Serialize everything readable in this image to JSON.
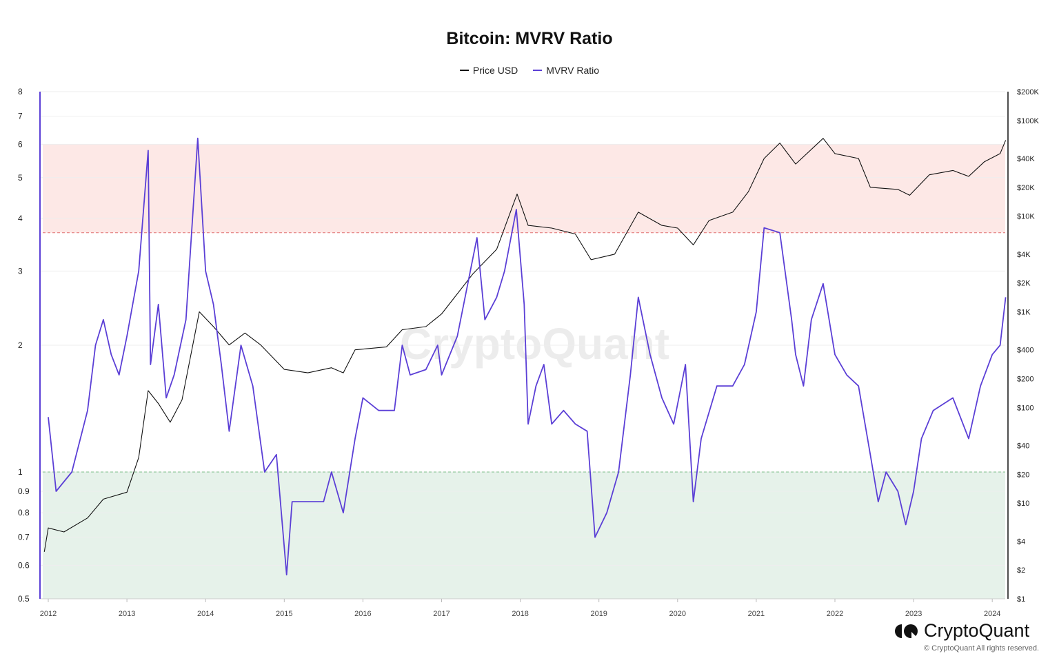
{
  "chart_data": {
    "type": "line",
    "title": "Bitcoin: MVRV Ratio",
    "legend_placement": "top-center",
    "grid": true,
    "x_ticks": [
      "2012",
      "2013",
      "2014",
      "2015",
      "2016",
      "2017",
      "2018",
      "2019",
      "2020",
      "2021",
      "2022",
      "2023",
      "2024"
    ],
    "xlim": [
      2011.9,
      2024.17
    ],
    "y_left": {
      "scale": "log",
      "range": [
        0.5,
        8
      ],
      "ticks": [
        "8",
        "7",
        "6",
        "5",
        "4",
        "3",
        "2",
        "1",
        "0.9",
        "0.8",
        "0.7",
        "0.6",
        "0.5"
      ],
      "tick_values": [
        8,
        7,
        6,
        5,
        4,
        3,
        2,
        1,
        0.9,
        0.8,
        0.7,
        0.6,
        0.5
      ]
    },
    "y_right": {
      "scale": "log",
      "range": [
        1,
        200000
      ],
      "ticks": [
        "$200K",
        "$100K",
        "$40K",
        "$20K",
        "$10K",
        "$4K",
        "$2K",
        "$1K",
        "$400",
        "$200",
        "$100",
        "$40",
        "$20",
        "$10",
        "$4",
        "$2",
        "$1"
      ],
      "tick_values": [
        200000,
        100000,
        40000,
        20000,
        10000,
        4000,
        2000,
        1000,
        400,
        200,
        100,
        40,
        20,
        10,
        4,
        2,
        1
      ]
    },
    "bands": [
      {
        "from": 3.7,
        "to": 6,
        "color": "#fde8e6",
        "line_color": "#e07070"
      },
      {
        "from": 0.5,
        "to": 1,
        "color": "#e6f2ea",
        "line_color": "#7fbf8a"
      }
    ],
    "series": [
      {
        "name": "Price USD",
        "axis": "right",
        "color": "#111111",
        "x": [
          2011.95,
          2012.0,
          2012.2,
          2012.5,
          2012.7,
          2013.0,
          2013.15,
          2013.27,
          2013.4,
          2013.55,
          2013.7,
          2013.92,
          2014.1,
          2014.3,
          2014.5,
          2014.7,
          2015.0,
          2015.3,
          2015.6,
          2015.75,
          2015.9,
          2016.3,
          2016.5,
          2016.8,
          2017.0,
          2017.4,
          2017.7,
          2017.96,
          2018.1,
          2018.4,
          2018.7,
          2018.9,
          2019.2,
          2019.5,
          2019.8,
          2020.0,
          2020.2,
          2020.4,
          2020.7,
          2020.9,
          2021.1,
          2021.3,
          2021.5,
          2021.85,
          2022.0,
          2022.3,
          2022.45,
          2022.8,
          2022.95,
          2023.2,
          2023.5,
          2023.7,
          2023.9,
          2024.1,
          2024.17
        ],
        "values": [
          3.1,
          5.5,
          5,
          7,
          11,
          13,
          30,
          150,
          110,
          70,
          120,
          1000,
          700,
          450,
          600,
          450,
          250,
          230,
          260,
          230,
          400,
          430,
          650,
          700,
          950,
          2500,
          4500,
          17000,
          8000,
          7500,
          6500,
          3500,
          4000,
          11000,
          8000,
          7500,
          5000,
          9000,
          11000,
          18000,
          40000,
          58000,
          35000,
          65000,
          45000,
          40000,
          20000,
          19000,
          16500,
          27000,
          30000,
          26000,
          37000,
          45000,
          62000
        ]
      },
      {
        "name": "MVRV Ratio",
        "axis": "left",
        "color": "#5b3fd6",
        "x": [
          2012.0,
          2012.1,
          2012.3,
          2012.5,
          2012.6,
          2012.7,
          2012.8,
          2012.9,
          2013.0,
          2013.15,
          2013.27,
          2013.3,
          2013.4,
          2013.5,
          2013.6,
          2013.75,
          2013.9,
          2014.0,
          2014.1,
          2014.2,
          2014.3,
          2014.45,
          2014.6,
          2014.75,
          2014.9,
          2015.03,
          2015.1,
          2015.3,
          2015.5,
          2015.6,
          2015.75,
          2015.9,
          2016.0,
          2016.2,
          2016.4,
          2016.5,
          2016.6,
          2016.8,
          2016.95,
          2017.0,
          2017.2,
          2017.45,
          2017.55,
          2017.7,
          2017.8,
          2017.95,
          2018.05,
          2018.1,
          2018.2,
          2018.3,
          2018.4,
          2018.55,
          2018.7,
          2018.85,
          2018.95,
          2019.1,
          2019.25,
          2019.4,
          2019.5,
          2019.65,
          2019.8,
          2019.95,
          2020.1,
          2020.2,
          2020.3,
          2020.5,
          2020.7,
          2020.85,
          2021.0,
          2021.1,
          2021.3,
          2021.45,
          2021.5,
          2021.6,
          2021.7,
          2021.85,
          2022.0,
          2022.15,
          2022.3,
          2022.45,
          2022.55,
          2022.65,
          2022.8,
          2022.9,
          2023.0,
          2023.1,
          2023.25,
          2023.5,
          2023.7,
          2023.85,
          2024.0,
          2024.1,
          2024.17
        ],
        "values": [
          1.35,
          0.9,
          1.0,
          1.4,
          2.0,
          2.3,
          1.9,
          1.7,
          2.1,
          3.0,
          5.8,
          1.8,
          2.5,
          1.5,
          1.7,
          2.3,
          6.2,
          3.0,
          2.5,
          1.8,
          1.25,
          2.0,
          1.6,
          1.0,
          1.1,
          0.57,
          0.85,
          0.85,
          0.85,
          1.0,
          0.8,
          1.2,
          1.5,
          1.4,
          1.4,
          2.0,
          1.7,
          1.75,
          2.0,
          1.7,
          2.1,
          3.6,
          2.3,
          2.6,
          3.0,
          4.2,
          2.5,
          1.3,
          1.6,
          1.8,
          1.3,
          1.4,
          1.3,
          1.25,
          0.7,
          0.8,
          1.0,
          1.7,
          2.6,
          1.9,
          1.5,
          1.3,
          1.8,
          0.85,
          1.2,
          1.6,
          1.6,
          1.8,
          2.4,
          3.8,
          3.7,
          2.3,
          1.9,
          1.6,
          2.3,
          2.8,
          1.9,
          1.7,
          1.6,
          1.1,
          0.85,
          1.0,
          0.9,
          0.75,
          0.9,
          1.2,
          1.4,
          1.5,
          1.2,
          1.6,
          1.9,
          2.0,
          2.6
        ]
      }
    ]
  },
  "legend": {
    "price": "Price USD",
    "mvrv": "MVRV Ratio"
  },
  "watermark": "CryptoQuant",
  "brand": {
    "name": "CryptoQuant",
    "copyright": "© CryptoQuant All rights reserved."
  }
}
